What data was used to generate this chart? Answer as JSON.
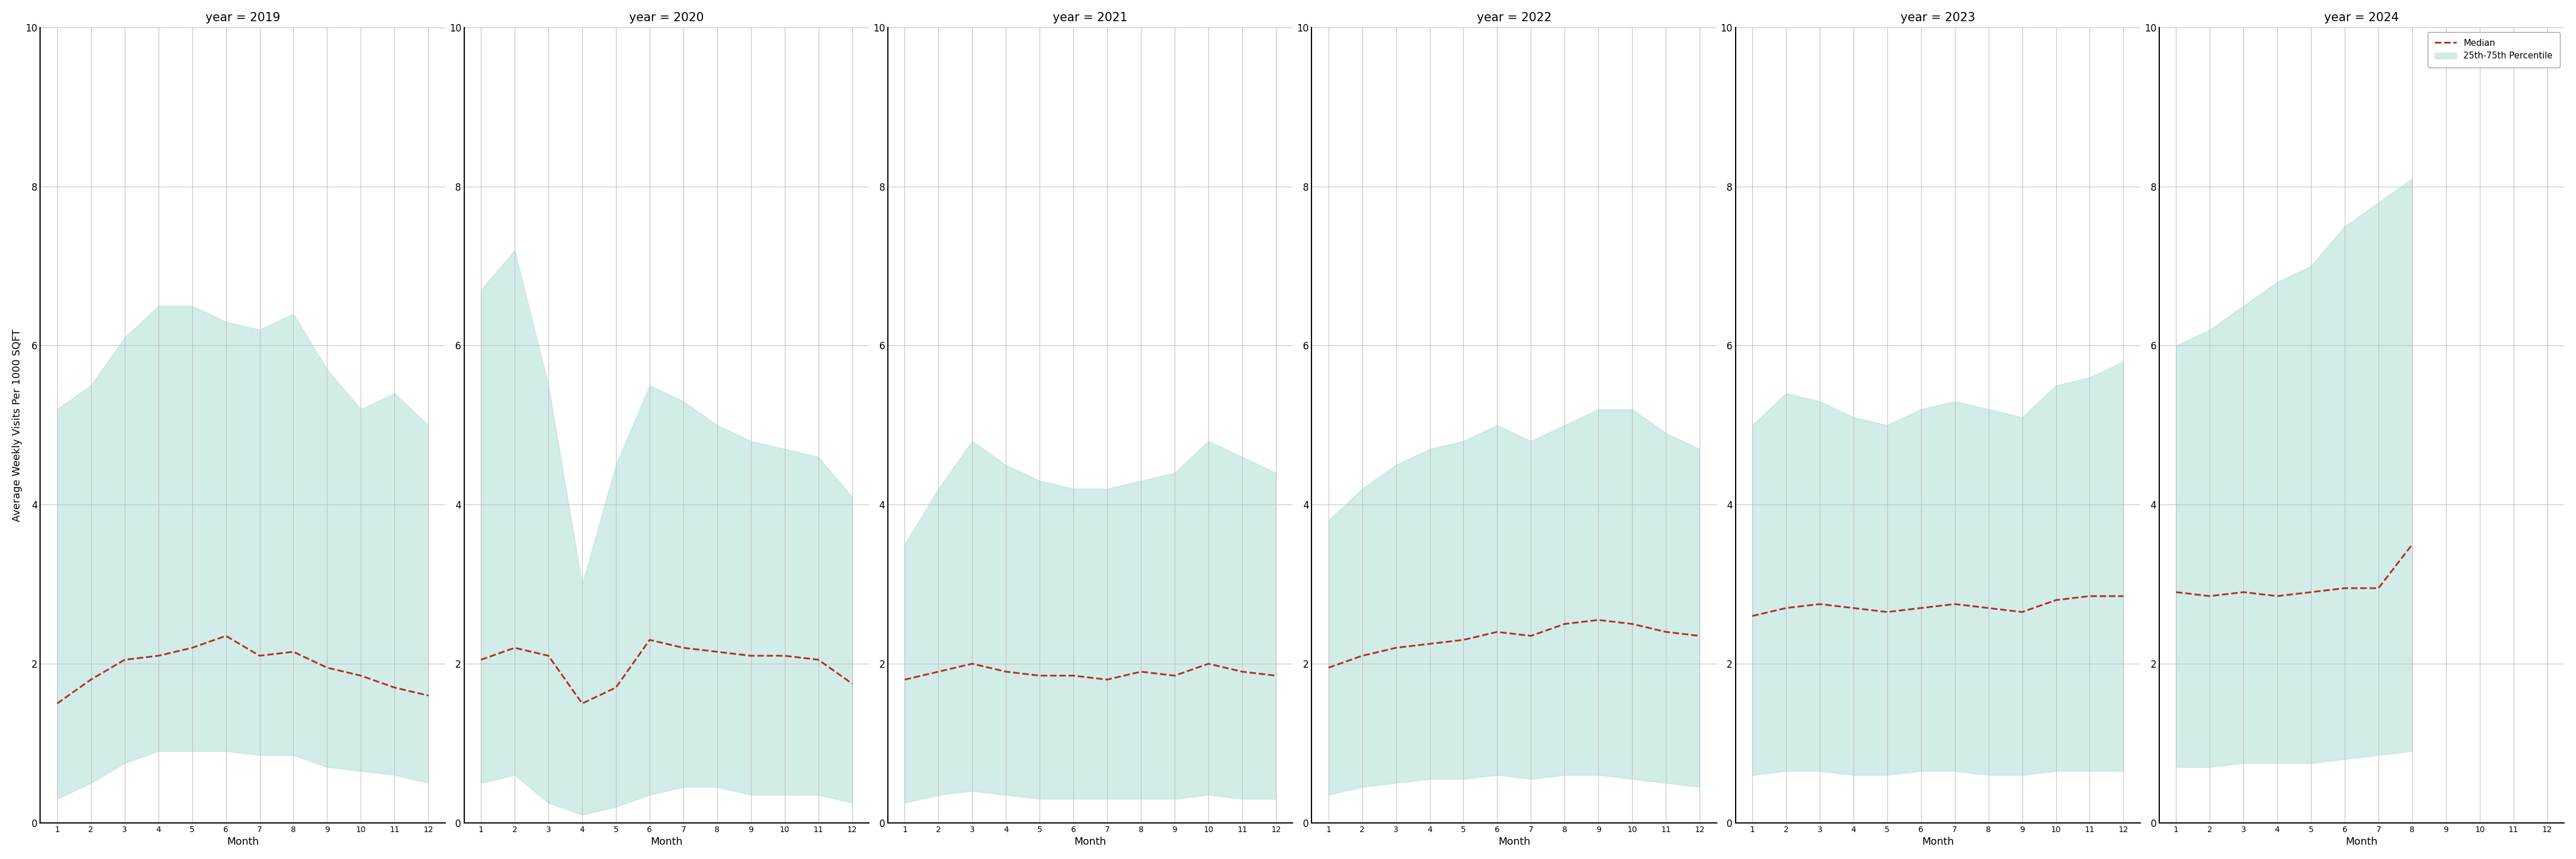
{
  "years": [
    2019,
    2020,
    2021,
    2022,
    2023,
    2024
  ],
  "months": [
    1,
    2,
    3,
    4,
    5,
    6,
    7,
    8,
    9,
    10,
    11,
    12
  ],
  "median": {
    "2019": [
      1.5,
      1.8,
      2.05,
      2.1,
      2.2,
      2.35,
      2.1,
      2.15,
      1.95,
      1.85,
      1.7,
      1.6
    ],
    "2020": [
      2.05,
      2.2,
      2.1,
      1.5,
      1.7,
      2.3,
      2.2,
      2.15,
      2.1,
      2.1,
      2.05,
      1.75
    ],
    "2021": [
      1.8,
      1.9,
      2.0,
      1.9,
      1.85,
      1.85,
      1.8,
      1.9,
      1.85,
      2.0,
      1.9,
      1.85
    ],
    "2022": [
      1.95,
      2.1,
      2.2,
      2.25,
      2.3,
      2.4,
      2.35,
      2.5,
      2.55,
      2.5,
      2.4,
      2.35
    ],
    "2023": [
      2.6,
      2.7,
      2.75,
      2.7,
      2.65,
      2.7,
      2.75,
      2.7,
      2.65,
      2.8,
      2.85,
      2.85
    ],
    "2024": [
      2.9,
      2.85,
      2.9,
      2.85,
      2.9,
      2.95,
      2.95,
      3.5,
      null,
      null,
      null,
      null
    ]
  },
  "q25": {
    "2019": [
      0.3,
      0.5,
      0.75,
      0.9,
      0.9,
      0.9,
      0.85,
      0.85,
      0.7,
      0.65,
      0.6,
      0.5
    ],
    "2020": [
      0.5,
      0.6,
      0.25,
      0.1,
      0.2,
      0.35,
      0.45,
      0.45,
      0.35,
      0.35,
      0.35,
      0.25
    ],
    "2021": [
      0.25,
      0.35,
      0.4,
      0.35,
      0.3,
      0.3,
      0.3,
      0.3,
      0.3,
      0.35,
      0.3,
      0.3
    ],
    "2022": [
      0.35,
      0.45,
      0.5,
      0.55,
      0.55,
      0.6,
      0.55,
      0.6,
      0.6,
      0.55,
      0.5,
      0.45
    ],
    "2023": [
      0.6,
      0.65,
      0.65,
      0.6,
      0.6,
      0.65,
      0.65,
      0.6,
      0.6,
      0.65,
      0.65,
      0.65
    ],
    "2024": [
      0.7,
      0.7,
      0.75,
      0.75,
      0.75,
      0.8,
      0.85,
      0.9,
      null,
      null,
      null,
      null
    ]
  },
  "q75": {
    "2019": [
      5.2,
      5.5,
      6.1,
      6.5,
      6.5,
      6.3,
      6.2,
      6.4,
      5.7,
      5.2,
      5.4,
      5.0
    ],
    "2020": [
      6.7,
      7.2,
      5.5,
      3.0,
      4.5,
      5.5,
      5.3,
      5.0,
      4.8,
      4.7,
      4.6,
      4.1
    ],
    "2021": [
      3.5,
      4.2,
      4.8,
      4.5,
      4.3,
      4.2,
      4.2,
      4.3,
      4.4,
      4.8,
      4.6,
      4.4
    ],
    "2022": [
      3.8,
      4.2,
      4.5,
      4.7,
      4.8,
      5.0,
      4.8,
      5.0,
      5.2,
      5.2,
      4.9,
      4.7
    ],
    "2023": [
      5.0,
      5.4,
      5.3,
      5.1,
      5.0,
      5.2,
      5.3,
      5.2,
      5.1,
      5.5,
      5.6,
      5.8
    ],
    "2024": [
      6.0,
      6.2,
      6.5,
      6.8,
      7.0,
      7.5,
      7.8,
      8.1,
      null,
      null,
      null,
      null
    ]
  },
  "fill_color": "#aeddd6",
  "fill_alpha": 0.55,
  "line_color": "#b03030",
  "ylabel": "Average Weekly Visits Per 1000 SQFT",
  "xlabel": "Month",
  "ylim": [
    0,
    10
  ],
  "yticks": [
    0,
    2,
    4,
    6,
    8,
    10
  ],
  "legend_median": "Median",
  "legend_fill": "25th-75th Percentile",
  "background_color": "#ffffff",
  "grid_color": "#bbbbbb"
}
